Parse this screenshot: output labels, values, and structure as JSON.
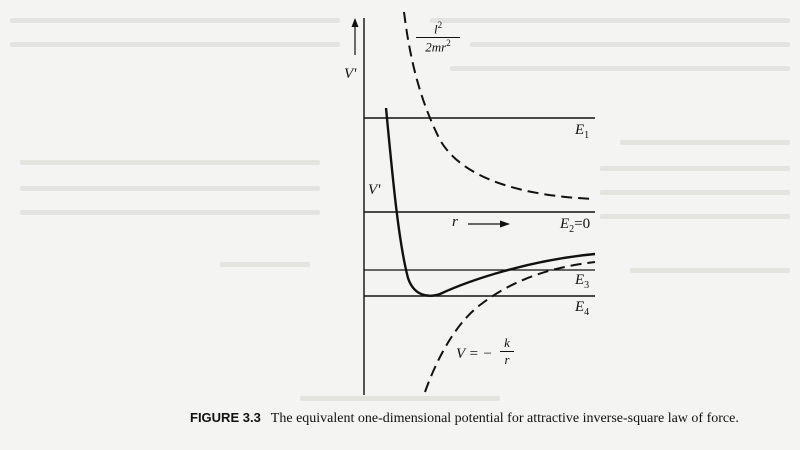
{
  "figure": {
    "number": "FIGURE 3.3",
    "caption_text": "The equivalent one-dimensional potential for attractive inverse-square law of force.",
    "labels": {
      "v_prime_axis": "V'",
      "v_prime_curve": "V'",
      "r_axis": "r",
      "centrifugal_num": "l2",
      "centrifugal_num_base": "l",
      "centrifugal_num_exp": "2",
      "centrifugal_den_base": "2mr",
      "centrifugal_den_exp": "2",
      "coulomb_lhs": "V = −",
      "coulomb_num": "k",
      "coulomb_den": "r",
      "e1": "E",
      "e1_sub": "1",
      "e2": "E",
      "e2_sub": "2",
      "e2_eq": "=0",
      "e3": "E",
      "e3_sub": "3",
      "e4": "E",
      "e4_sub": "4"
    }
  }
}
